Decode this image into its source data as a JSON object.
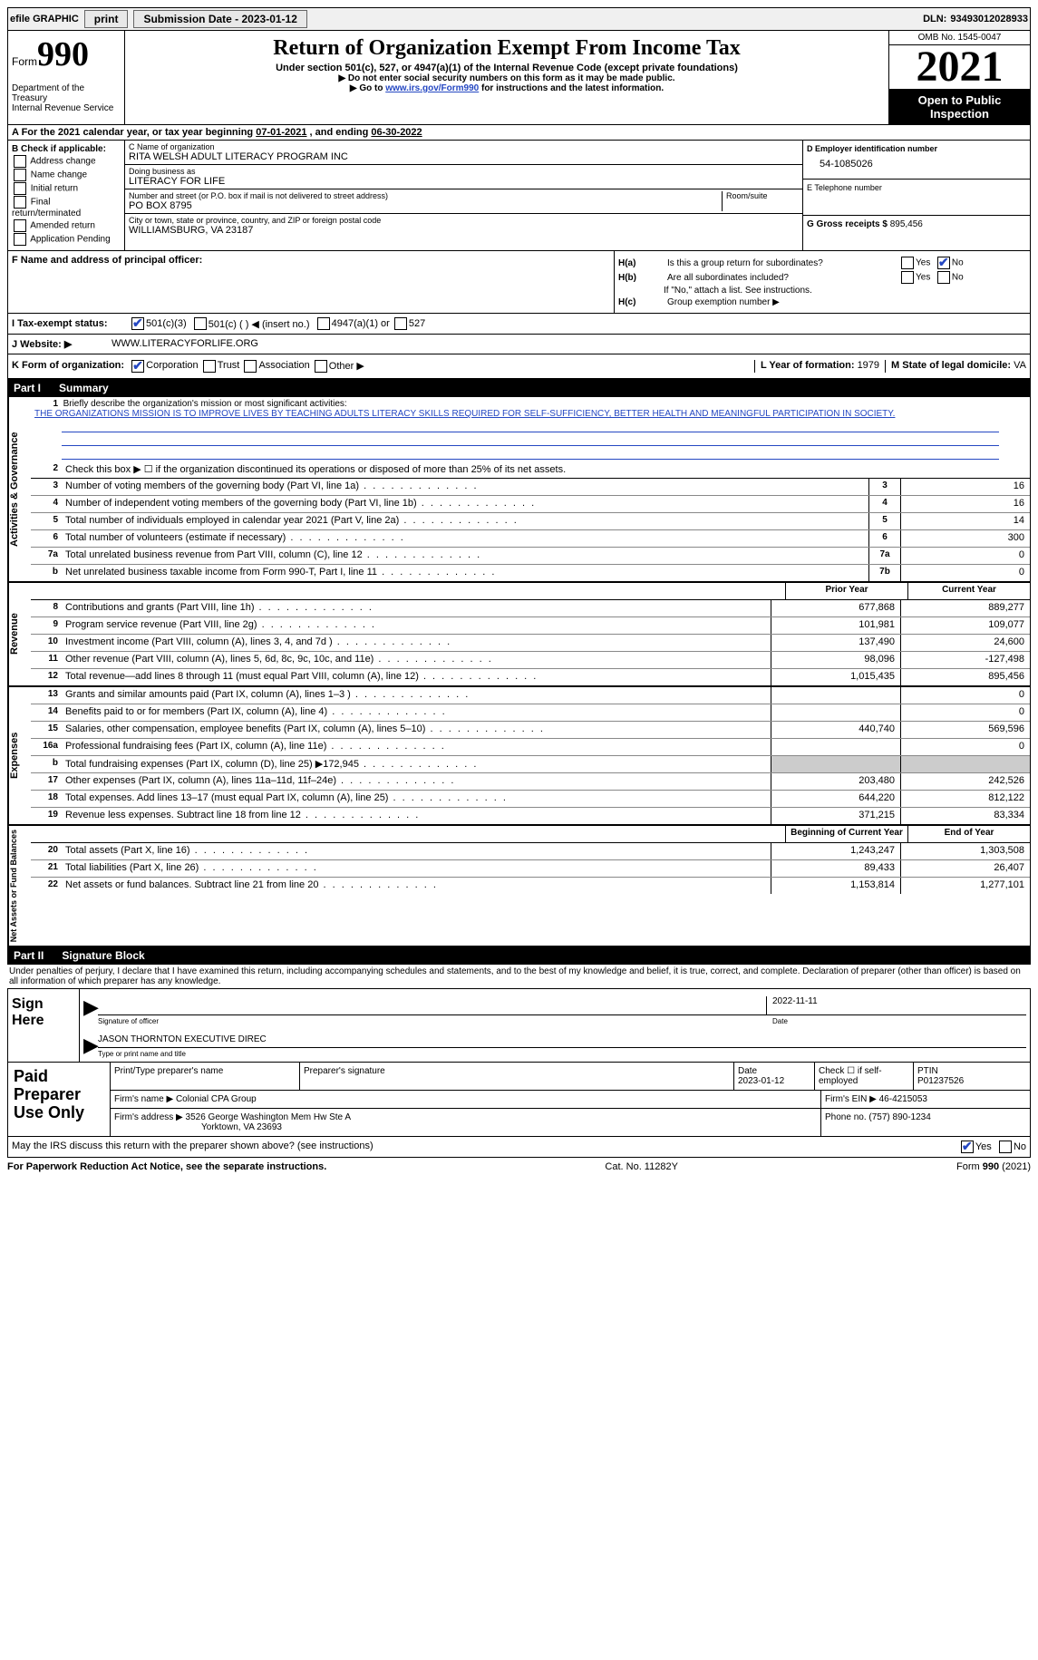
{
  "topbar": {
    "efile": "efile GRAPHIC",
    "print": "print",
    "sub_label": "Submission Date - ",
    "sub_date": "2023-01-12",
    "dln_label": "DLN:",
    "dln": "93493012028933"
  },
  "header": {
    "form_word": "Form",
    "form_num": "990",
    "dept": "Department of the Treasury",
    "irs": "Internal Revenue Service",
    "title": "Return of Organization Exempt From Income Tax",
    "sub": "Under section 501(c), 527, or 4947(a)(1) of the Internal Revenue Code (except private foundations)",
    "note1": "▶ Do not enter social security numbers on this form as it may be made public.",
    "note2_pre": "▶ Go to ",
    "note2_link": "www.irs.gov/Form990",
    "note2_post": " for instructions and the latest information.",
    "omb": "OMB No. 1545-0047",
    "year": "2021",
    "open": "Open to Public Inspection"
  },
  "a": {
    "text": "A For the 2021 calendar year, or tax year beginning ",
    "begin": "07-01-2021",
    "mid": " , and ending ",
    "end": "06-30-2022"
  },
  "b": {
    "label": "B Check if applicable:",
    "opts": [
      "Address change",
      "Name change",
      "Initial return",
      "Final return/terminated",
      "Amended return",
      "Application Pending"
    ]
  },
  "c": {
    "name_label": "C Name of organization",
    "name": "RITA WELSH ADULT LITERACY PROGRAM INC",
    "dba_label": "Doing business as",
    "dba": "LITERACY FOR LIFE",
    "street_label": "Number and street (or P.O. box if mail is not delivered to street address)",
    "room_label": "Room/suite",
    "street": "PO BOX 8795",
    "city_label": "City or town, state or province, country, and ZIP or foreign postal code",
    "city": "WILLIAMSBURG, VA  23187"
  },
  "d": {
    "label": "D Employer identification number",
    "val": "54-1085026"
  },
  "e": {
    "label": "E Telephone number",
    "val": ""
  },
  "g": {
    "label": "G Gross receipts $",
    "val": "895,456"
  },
  "f": {
    "label": "F  Name and address of principal officer:"
  },
  "h": {
    "a_label": "H(a)",
    "a_text": "Is this a group return for subordinates?",
    "b_label": "H(b)",
    "b_text": "Are all subordinates included?",
    "b_note": "If \"No,\" attach a list. See instructions.",
    "c_label": "H(c)",
    "c_text": "Group exemption number ▶",
    "yes": "Yes",
    "no": "No"
  },
  "i": {
    "label": "I   Tax-exempt status:",
    "opts": [
      "501(c)(3)",
      "501(c) (  ) ◀ (insert no.)",
      "4947(a)(1) or",
      "527"
    ]
  },
  "j": {
    "label": "J   Website: ▶",
    "val": "WWW.LITERACYFORLIFE.ORG"
  },
  "k": {
    "label": "K Form of organization:",
    "opts": [
      "Corporation",
      "Trust",
      "Association",
      "Other ▶"
    ],
    "l_label": "L Year of formation:",
    "l_val": "1979",
    "m_label": "M State of legal domicile:",
    "m_val": "VA"
  },
  "part1": {
    "pt": "Part I",
    "title": "Summary"
  },
  "mission": {
    "q": "Briefly describe the organization's mission or most significant activities:",
    "text": "THE ORGANIZATIONS MISSION IS TO IMPROVE LIVES BY TEACHING ADULTS LITERACY SKILLS REQUIRED FOR SELF-SUFFICIENCY, BETTER HEALTH AND MEANINGFUL PARTICIPATION IN SOCIETY."
  },
  "line2": "Check this box ▶ ☐ if the organization discontinued its operations or disposed of more than 25% of its net assets.",
  "gov_block": "Activities & Governance",
  "rev_block": "Revenue",
  "exp_block": "Expenses",
  "net_block": "Net Assets or Fund Balances",
  "lines_gov": [
    {
      "n": "3",
      "d": "Number of voting members of the governing body (Part VI, line 1a)",
      "box": "3",
      "v": "16"
    },
    {
      "n": "4",
      "d": "Number of independent voting members of the governing body (Part VI, line 1b)",
      "box": "4",
      "v": "16"
    },
    {
      "n": "5",
      "d": "Total number of individuals employed in calendar year 2021 (Part V, line 2a)",
      "box": "5",
      "v": "14"
    },
    {
      "n": "6",
      "d": "Total number of volunteers (estimate if necessary)",
      "box": "6",
      "v": "300"
    },
    {
      "n": "7a",
      "d": "Total unrelated business revenue from Part VIII, column (C), line 12",
      "box": "7a",
      "v": "0"
    },
    {
      "n": "b",
      "d": "Net unrelated business taxable income from Form 990-T, Part I, line 11",
      "box": "7b",
      "v": "0"
    }
  ],
  "col_heads": {
    "prior": "Prior Year",
    "current": "Current Year"
  },
  "lines_rev": [
    {
      "n": "8",
      "d": "Contributions and grants (Part VIII, line 1h)",
      "p": "677,868",
      "c": "889,277"
    },
    {
      "n": "9",
      "d": "Program service revenue (Part VIII, line 2g)",
      "p": "101,981",
      "c": "109,077"
    },
    {
      "n": "10",
      "d": "Investment income (Part VIII, column (A), lines 3, 4, and 7d )",
      "p": "137,490",
      "c": "24,600"
    },
    {
      "n": "11",
      "d": "Other revenue (Part VIII, column (A), lines 5, 6d, 8c, 9c, 10c, and 11e)",
      "p": "98,096",
      "c": "-127,498"
    },
    {
      "n": "12",
      "d": "Total revenue—add lines 8 through 11 (must equal Part VIII, column (A), line 12)",
      "p": "1,015,435",
      "c": "895,456"
    }
  ],
  "lines_exp": [
    {
      "n": "13",
      "d": "Grants and similar amounts paid (Part IX, column (A), lines 1–3 )",
      "p": "",
      "c": "0"
    },
    {
      "n": "14",
      "d": "Benefits paid to or for members (Part IX, column (A), line 4)",
      "p": "",
      "c": "0"
    },
    {
      "n": "15",
      "d": "Salaries, other compensation, employee benefits (Part IX, column (A), lines 5–10)",
      "p": "440,740",
      "c": "569,596"
    },
    {
      "n": "16a",
      "d": "Professional fundraising fees (Part IX, column (A), line 11e)",
      "p": "",
      "c": "0"
    },
    {
      "n": "b",
      "d": "Total fundraising expenses (Part IX, column (D), line 25) ▶172,945",
      "p": "shaded",
      "c": "shaded"
    },
    {
      "n": "17",
      "d": "Other expenses (Part IX, column (A), lines 11a–11d, 11f–24e)",
      "p": "203,480",
      "c": "242,526"
    },
    {
      "n": "18",
      "d": "Total expenses. Add lines 13–17 (must equal Part IX, column (A), line 25)",
      "p": "644,220",
      "c": "812,122"
    },
    {
      "n": "19",
      "d": "Revenue less expenses. Subtract line 18 from line 12",
      "p": "371,215",
      "c": "83,334"
    }
  ],
  "col_heads2": {
    "begin": "Beginning of Current Year",
    "end": "End of Year"
  },
  "lines_net": [
    {
      "n": "20",
      "d": "Total assets (Part X, line 16)",
      "p": "1,243,247",
      "c": "1,303,508"
    },
    {
      "n": "21",
      "d": "Total liabilities (Part X, line 26)",
      "p": "89,433",
      "c": "26,407"
    },
    {
      "n": "22",
      "d": "Net assets or fund balances. Subtract line 21 from line 20",
      "p": "1,153,814",
      "c": "1,277,101"
    }
  ],
  "part2": {
    "pt": "Part II",
    "title": "Signature Block"
  },
  "penalties": "Under penalties of perjury, I declare that I have examined this return, including accompanying schedules and statements, and to the best of my knowledge and belief, it is true, correct, and complete. Declaration of preparer (other than officer) is based on all information of which preparer has any knowledge.",
  "sign": {
    "label": "Sign Here",
    "sig_label": "Signature of officer",
    "date_label": "Date",
    "name": "JASON THORNTON  EXECUTIVE DIREC",
    "name_label": "Type or print name and title",
    "date": "2022-11-11"
  },
  "preparer": {
    "label": "Paid Preparer Use Only",
    "r1": {
      "c1": "Print/Type preparer's name",
      "c2": "Preparer's signature",
      "c3_label": "Date",
      "c3": "2023-01-12",
      "c4_label": "Check ☐ if self-employed",
      "c5_label": "PTIN",
      "c5": "P01237526"
    },
    "r2": {
      "label": "Firm's name    ▶",
      "val": "Colonial CPA Group",
      "ein_label": "Firm's EIN ▶",
      "ein": "46-4215053"
    },
    "r3": {
      "label": "Firm's address ▶",
      "val": "3526 George Washington Mem Hw Ste A",
      "val2": "Yorktown, VA  23693",
      "ph_label": "Phone no.",
      "ph": "(757) 890-1234"
    }
  },
  "discuss": {
    "text": "May the IRS discuss this return with the preparer shown above? (see instructions)",
    "yes": "Yes",
    "no": "No"
  },
  "footer": {
    "paperwork": "For Paperwork Reduction Act Notice, see the separate instructions.",
    "cat": "Cat. No. 11282Y",
    "form": "Form 990 (2021)"
  }
}
